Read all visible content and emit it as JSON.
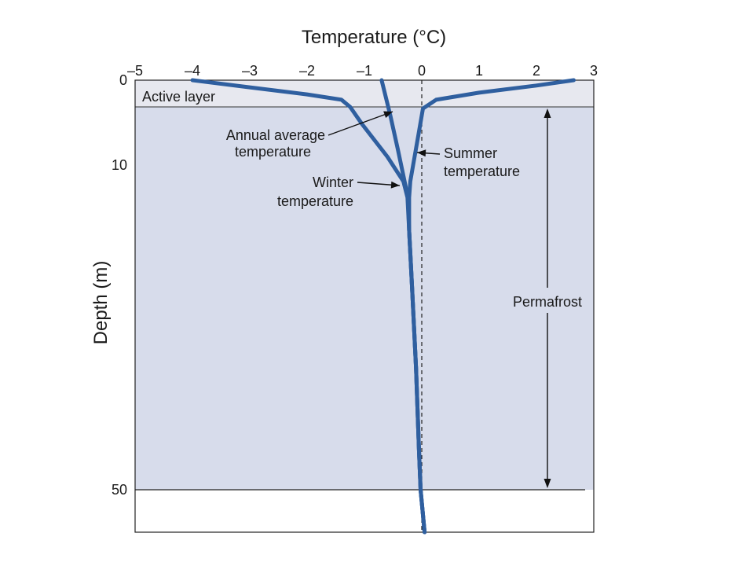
{
  "chart_data": {
    "type": "line",
    "title": "",
    "xlabel": "Temperature (°C)",
    "ylabel": "Depth (m)",
    "xlim": [
      -5,
      3
    ],
    "x_ticks": [
      "–5",
      "–4",
      "–3",
      "–2",
      "–1",
      "0",
      "1",
      "2",
      "3"
    ],
    "x_tick_values": [
      -5,
      -4,
      -3,
      -2,
      -1,
      0,
      1,
      2,
      3
    ],
    "y_ticks": [
      "0",
      "10",
      "50"
    ],
    "y_tick_values": [
      0,
      10,
      50
    ],
    "grid": false,
    "reference_line": {
      "x": 0,
      "style": "dashed"
    },
    "series": [
      {
        "name": "Winter temperature",
        "points": [
          [
            -4.0,
            0
          ],
          [
            -3.0,
            0.8
          ],
          [
            -2.0,
            1.6
          ],
          [
            -1.4,
            2.2
          ],
          [
            -1.25,
            3
          ],
          [
            -1.05,
            5
          ],
          [
            -0.6,
            9
          ],
          [
            -0.32,
            12
          ],
          [
            -0.25,
            14
          ],
          [
            -0.22,
            18
          ],
          [
            -0.17,
            25
          ],
          [
            -0.1,
            35
          ],
          [
            -0.05,
            45
          ],
          [
            -0.02,
            50
          ],
          [
            0.05,
            55
          ]
        ]
      },
      {
        "name": "Summer temperature",
        "points": [
          [
            2.65,
            0
          ],
          [
            2.0,
            0.6
          ],
          [
            1.0,
            1.4
          ],
          [
            0.25,
            2.2
          ],
          [
            0.02,
            3.2
          ],
          [
            -0.05,
            6
          ],
          [
            -0.15,
            10
          ],
          [
            -0.2,
            12
          ],
          [
            -0.22,
            14
          ],
          [
            -0.22,
            18
          ],
          [
            -0.17,
            25
          ],
          [
            -0.1,
            35
          ],
          [
            -0.05,
            45
          ],
          [
            -0.02,
            50
          ],
          [
            0.05,
            55
          ]
        ]
      },
      {
        "name": "Annual average temperature",
        "points": [
          [
            -0.7,
            0
          ],
          [
            -0.55,
            4
          ],
          [
            -0.42,
            8
          ],
          [
            -0.3,
            12
          ],
          [
            -0.24,
            14
          ],
          [
            -0.22,
            18
          ],
          [
            -0.17,
            25
          ],
          [
            -0.1,
            35
          ],
          [
            -0.05,
            45
          ],
          [
            -0.02,
            50
          ],
          [
            0.05,
            55
          ]
        ]
      }
    ],
    "annotations": {
      "active_layer": "Active layer",
      "annual_line1": "Annual average",
      "annual_line2": "temperature",
      "winter_line1": "Winter",
      "winter_line2": "temperature",
      "summer_line1": "Summer",
      "summer_line2": "temperature",
      "permafrost": "Permafrost"
    },
    "colors": {
      "line": "#2f5f9f",
      "plot_fill": "#d7dceb",
      "active_layer_fill": "#e7e8ef"
    }
  }
}
